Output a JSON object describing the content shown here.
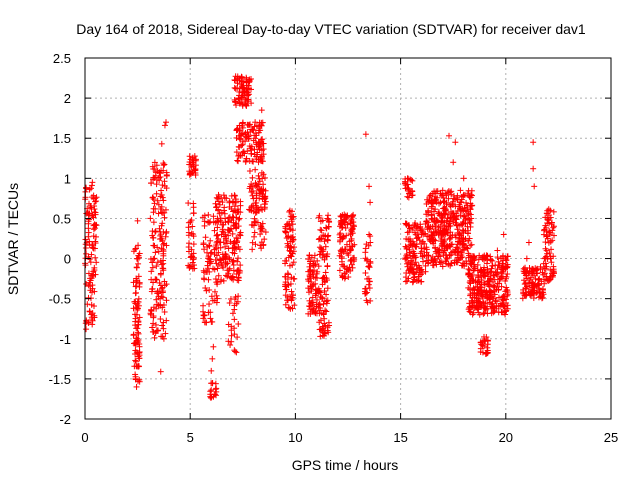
{
  "chart_data": {
    "type": "scatter",
    "title": "Day 164 of 2018, Sidereal Day-to-day VTEC variation (SDTVAR) for receiver dav1",
    "xlabel": "GPS time / hours",
    "ylabel": "SDTVAR / TECUs",
    "xlim": [
      0,
      25
    ],
    "ylim": [
      -2,
      2.5
    ],
    "xticks": [
      0,
      5,
      10,
      15,
      20,
      25
    ],
    "xtick_labels": [
      "0",
      "5",
      "10",
      "15",
      "20",
      "25"
    ],
    "yticks": [
      -2,
      -1.5,
      -1,
      -0.5,
      0,
      0.5,
      1,
      1.5,
      2,
      2.5
    ],
    "ytick_labels": [
      "-2",
      "-1.5",
      "-1",
      "-0.5",
      "0",
      "0.5",
      "1",
      "1.5",
      "2",
      "2.5"
    ],
    "grid": true,
    "marker": "+",
    "series_color": "#ff0000",
    "clusters": [
      {
        "x0": 0.0,
        "x1": 0.55,
        "ylo": -0.85,
        "yhi": 0.95,
        "n": 110,
        "extra": [
          [
            0.05,
            -0.88
          ],
          [
            0.35,
            0.95
          ],
          [
            0.5,
            -0.2
          ]
        ]
      },
      {
        "x0": 2.3,
        "x1": 2.6,
        "ylo": -1.6,
        "yhi": 0.2,
        "n": 90,
        "extra": [
          [
            2.5,
            0.47
          ],
          [
            2.45,
            -1.6
          ],
          [
            2.4,
            -1.5
          ]
        ]
      },
      {
        "x0": 3.1,
        "x1": 3.9,
        "ylo": -1.0,
        "yhi": 1.2,
        "n": 170,
        "extra": [
          [
            3.65,
            1.43
          ],
          [
            3.85,
            1.7
          ],
          [
            3.8,
            1.66
          ],
          [
            3.6,
            -1.41
          ],
          [
            3.75,
            -1.0
          ]
        ]
      },
      {
        "x0": 4.95,
        "x1": 5.3,
        "ylo": 1.0,
        "yhi": 1.28,
        "n": 30,
        "extra": []
      },
      {
        "x0": 4.9,
        "x1": 5.2,
        "ylo": -0.15,
        "yhi": 0.7,
        "n": 35,
        "extra": []
      },
      {
        "x0": 5.6,
        "x1": 6.3,
        "ylo": -0.8,
        "yhi": 0.55,
        "n": 80,
        "extra": [
          [
            6.1,
            -1.1
          ],
          [
            6.0,
            -1.4
          ],
          [
            6.05,
            -1.25
          ]
        ]
      },
      {
        "x0": 5.95,
        "x1": 6.25,
        "ylo": -1.75,
        "yhi": -1.55,
        "n": 18,
        "extra": []
      },
      {
        "x0": 6.2,
        "x1": 7.4,
        "ylo": -0.3,
        "yhi": 0.8,
        "n": 180,
        "extra": []
      },
      {
        "x0": 6.8,
        "x1": 7.3,
        "ylo": -1.2,
        "yhi": -0.4,
        "n": 25,
        "extra": []
      },
      {
        "x0": 7.1,
        "x1": 7.9,
        "ylo": 1.9,
        "yhi": 2.28,
        "n": 80,
        "extra": []
      },
      {
        "x0": 7.2,
        "x1": 8.5,
        "ylo": 1.2,
        "yhi": 1.7,
        "n": 120,
        "extra": [
          [
            8.4,
            1.85
          ]
        ]
      },
      {
        "x0": 7.8,
        "x1": 8.6,
        "ylo": 0.6,
        "yhi": 1.15,
        "n": 60,
        "extra": []
      },
      {
        "x0": 7.9,
        "x1": 8.6,
        "ylo": 0.1,
        "yhi": 0.7,
        "n": 40,
        "extra": []
      },
      {
        "x0": 9.5,
        "x1": 9.95,
        "ylo": -0.65,
        "yhi": 0.6,
        "n": 90,
        "extra": []
      },
      {
        "x0": 10.6,
        "x1": 11.05,
        "ylo": -0.75,
        "yhi": 0.05,
        "n": 70,
        "extra": []
      },
      {
        "x0": 11.1,
        "x1": 11.6,
        "ylo": -1.0,
        "yhi": 0.55,
        "n": 110,
        "extra": []
      },
      {
        "x0": 12.1,
        "x1": 12.8,
        "ylo": -0.25,
        "yhi": 0.55,
        "n": 110,
        "extra": []
      },
      {
        "x0": 13.3,
        "x1": 13.6,
        "ylo": -0.55,
        "yhi": 0.35,
        "n": 30,
        "extra": [
          [
            13.35,
            1.55
          ],
          [
            13.5,
            0.9
          ],
          [
            13.55,
            0.7
          ],
          [
            13.5,
            0.3
          ]
        ]
      },
      {
        "x0": 15.2,
        "x1": 15.6,
        "ylo": 0.75,
        "yhi": 1.0,
        "n": 25,
        "extra": []
      },
      {
        "x0": 15.2,
        "x1": 16.2,
        "ylo": -0.3,
        "yhi": 0.45,
        "n": 140,
        "extra": []
      },
      {
        "x0": 16.2,
        "x1": 18.4,
        "ylo": -0.1,
        "yhi": 0.85,
        "n": 420,
        "extra": [
          [
            17.3,
            1.53
          ],
          [
            17.6,
            1.45
          ],
          [
            17.5,
            1.2
          ],
          [
            18.0,
            1.0
          ]
        ]
      },
      {
        "x0": 18.2,
        "x1": 20.1,
        "ylo": -0.7,
        "yhi": 0.05,
        "n": 320,
        "extra": [
          [
            19.6,
            0.1
          ],
          [
            19.9,
            0.3
          ]
        ]
      },
      {
        "x0": 18.8,
        "x1": 19.15,
        "ylo": -1.2,
        "yhi": -0.95,
        "n": 25,
        "extra": []
      },
      {
        "x0": 20.8,
        "x1": 21.8,
        "ylo": -0.5,
        "yhi": -0.1,
        "n": 110,
        "extra": [
          [
            21.3,
            1.45
          ],
          [
            21.3,
            1.12
          ],
          [
            21.35,
            0.9
          ],
          [
            21.1,
            0.2
          ],
          [
            21.0,
            0.0
          ]
        ]
      },
      {
        "x0": 21.8,
        "x1": 22.3,
        "ylo": -0.35,
        "yhi": 0.65,
        "n": 80,
        "extra": []
      }
    ]
  }
}
